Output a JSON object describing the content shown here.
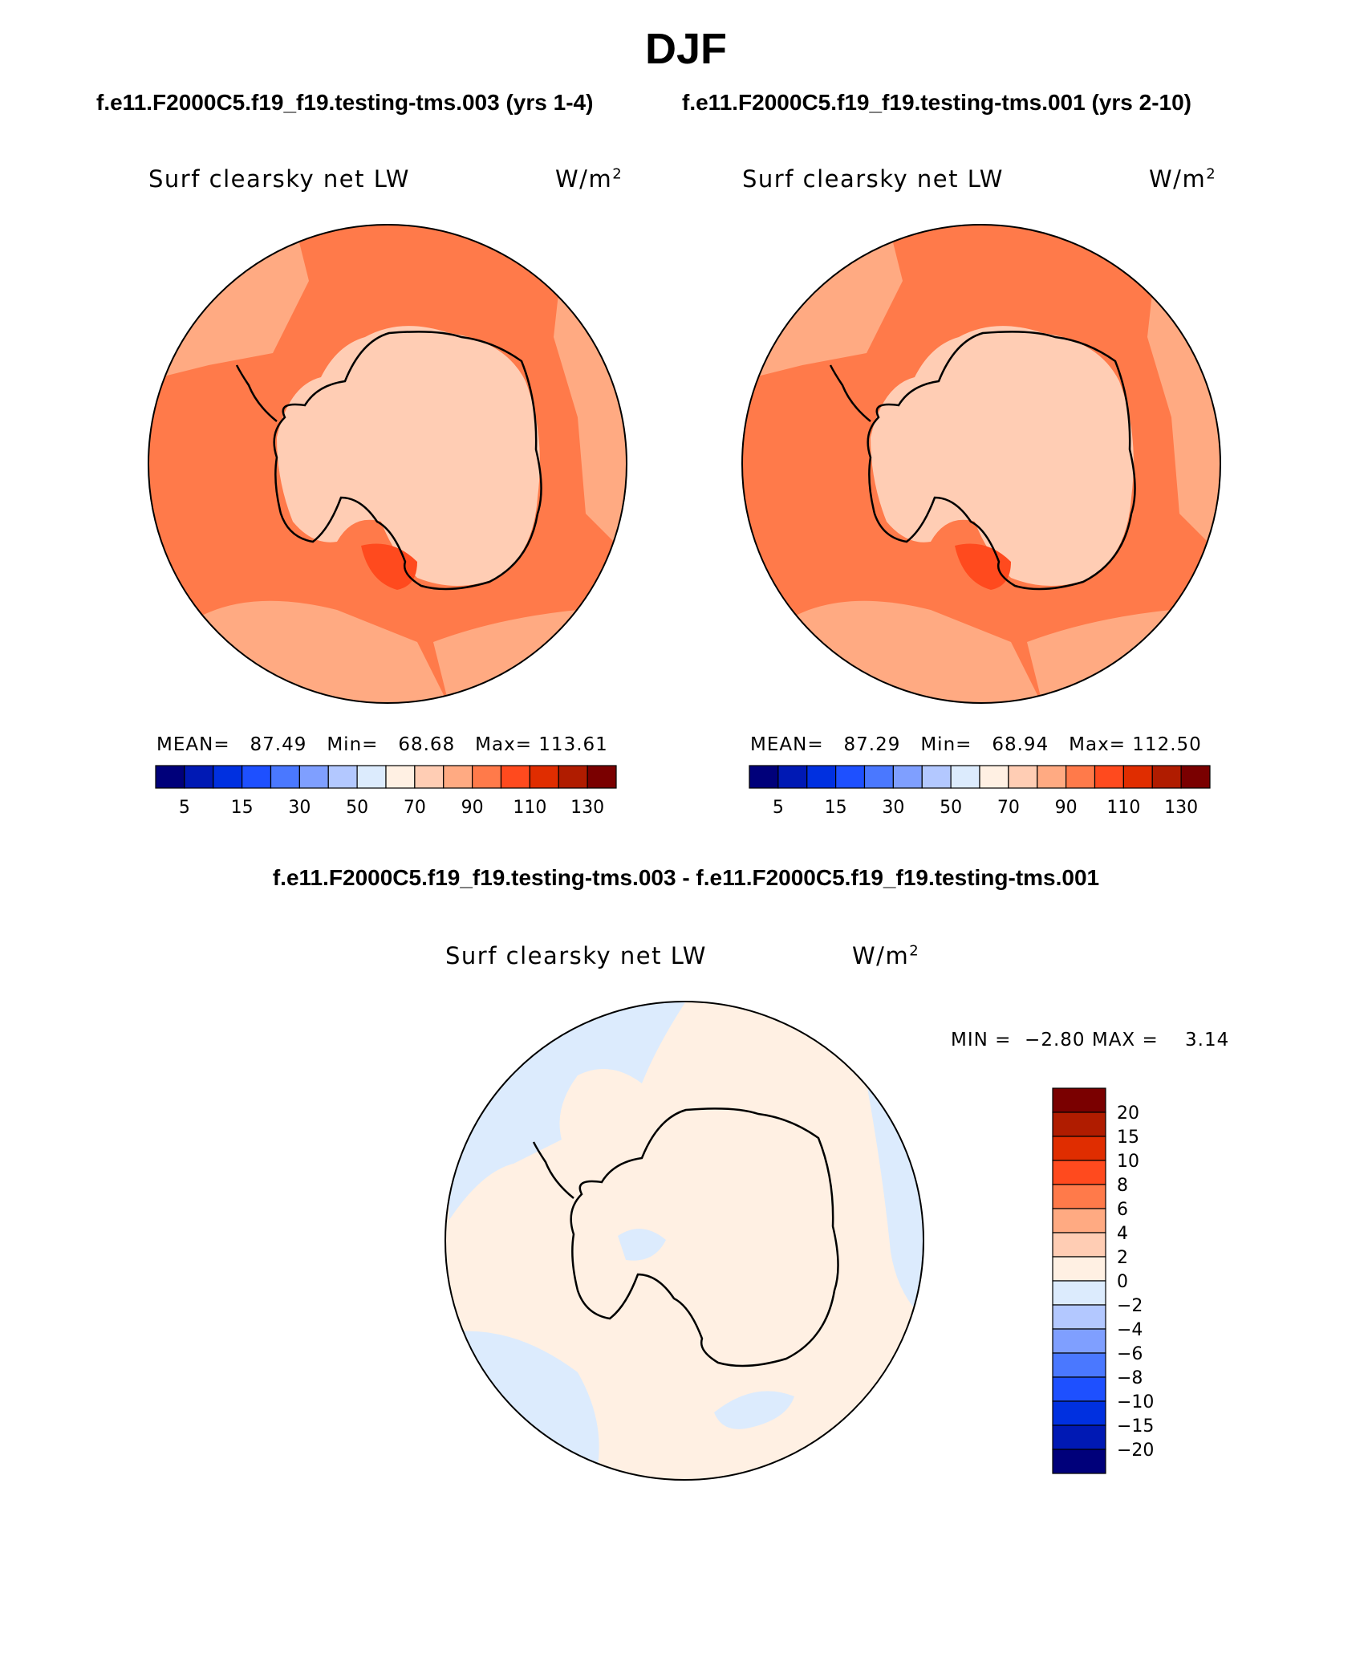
{
  "title": "DJF",
  "case_titles": [
    "f.e11.F2000C5.f19_f19.testing-tms.003 (yrs 1-4)",
    "f.e11.F2000C5.f19_f19.testing-tms.001 (yrs 2-10)"
  ],
  "diff_title": "f.e11.F2000C5.f19_f19.testing-tms.003 - f.e11.F2000C5.f19_f19.testing-tms.001",
  "panels": [
    {
      "variable": "Surf clearsky net LW",
      "units_base": "W/m",
      "units_exp": "2",
      "stats": {
        "mean_label": "MEAN=",
        "mean": "87.49",
        "min_label": "Min=",
        "min": "68.68",
        "max_label": "Max=",
        "max": "113.61"
      }
    },
    {
      "variable": "Surf clearsky net LW",
      "units_base": "W/m",
      "units_exp": "2",
      "stats": {
        "mean_label": "MEAN=",
        "mean": "87.29",
        "min_label": "Min=",
        "min": "68.94",
        "max_label": "Max=",
        "max": "112.50"
      }
    }
  ],
  "diff_panel": {
    "variable": "Surf clearsky net LW",
    "units_base": "W/m",
    "units_exp": "2",
    "stats": {
      "min_label": "MIN =",
      "min": "−2.80",
      "max_label": "MAX =",
      "max": "3.14"
    }
  },
  "colorbar": {
    "labels": [
      "5",
      "15",
      "30",
      "50",
      "70",
      "90",
      "110",
      "130"
    ],
    "colors": [
      "#00007a",
      "#0019b4",
      "#0030e0",
      "#1e50ff",
      "#4a78ff",
      "#7f9fff",
      "#b3c8ff",
      "#dcebfd",
      "#fff0e3",
      "#ffcdb4",
      "#ffaa82",
      "#ff7a4a",
      "#ff4a1e",
      "#e02d00",
      "#b01c00",
      "#7a0000"
    ]
  },
  "diff_colorbar": {
    "labels": [
      "20",
      "15",
      "10",
      "8",
      "6",
      "4",
      "2",
      "0",
      "−2",
      "−4",
      "−6",
      "−8",
      "−10",
      "−15",
      "−20"
    ],
    "colors": [
      "#7a0000",
      "#b01c00",
      "#e02d00",
      "#ff4a1e",
      "#ff7a4a",
      "#ffaa82",
      "#ffcdb4",
      "#fff0e3",
      "#dcebfd",
      "#b3c8ff",
      "#7f9fff",
      "#4a78ff",
      "#1e50ff",
      "#0030e0",
      "#0019b4",
      "#00007a"
    ]
  },
  "map_colors": {
    "ocean_outer": "#ff7a4a",
    "ocean_mid": "#ffaa82",
    "continent": "#ffcdb4",
    "coast_red": "#ff4a1e",
    "diff_pos": "#fff0e3",
    "diff_neg": "#dcebfd",
    "coastline": "#000000"
  }
}
